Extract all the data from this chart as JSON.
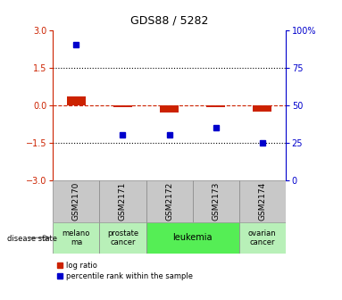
{
  "title": "GDS88 / 5282",
  "samples": [
    "GSM2170",
    "GSM2171",
    "GSM2172",
    "GSM2173",
    "GSM2174"
  ],
  "log_ratios": [
    0.35,
    -0.08,
    -0.3,
    -0.1,
    -0.25
  ],
  "percentile_ranks": [
    90,
    30,
    30,
    35,
    25
  ],
  "ylim_left": [
    -3,
    3
  ],
  "ylim_right": [
    0,
    100
  ],
  "yticks_left": [
    -3,
    -1.5,
    0,
    1.5,
    3
  ],
  "yticks_right": [
    0,
    25,
    50,
    75,
    100
  ],
  "dotted_lines": [
    1.5,
    -1.5
  ],
  "bar_color": "#cc2200",
  "dot_color": "#0000cc",
  "disease_states": [
    0,
    1,
    2,
    2,
    3
  ],
  "disease_info": {
    "0": [
      "melano\nma",
      "#b8f0b8"
    ],
    "1": [
      "prostate\ncancer",
      "#b8f0b8"
    ],
    "2": [
      "leukemia",
      "#55ee55"
    ],
    "3": [
      "ovarian\ncancer",
      "#b8f0b8"
    ]
  },
  "sample_bg_color": "#c8c8c8",
  "legend_red_label": "log ratio",
  "legend_blue_label": "percentile rank within the sample",
  "left_axis_color": "#cc2200",
  "right_axis_color": "#0000cc"
}
